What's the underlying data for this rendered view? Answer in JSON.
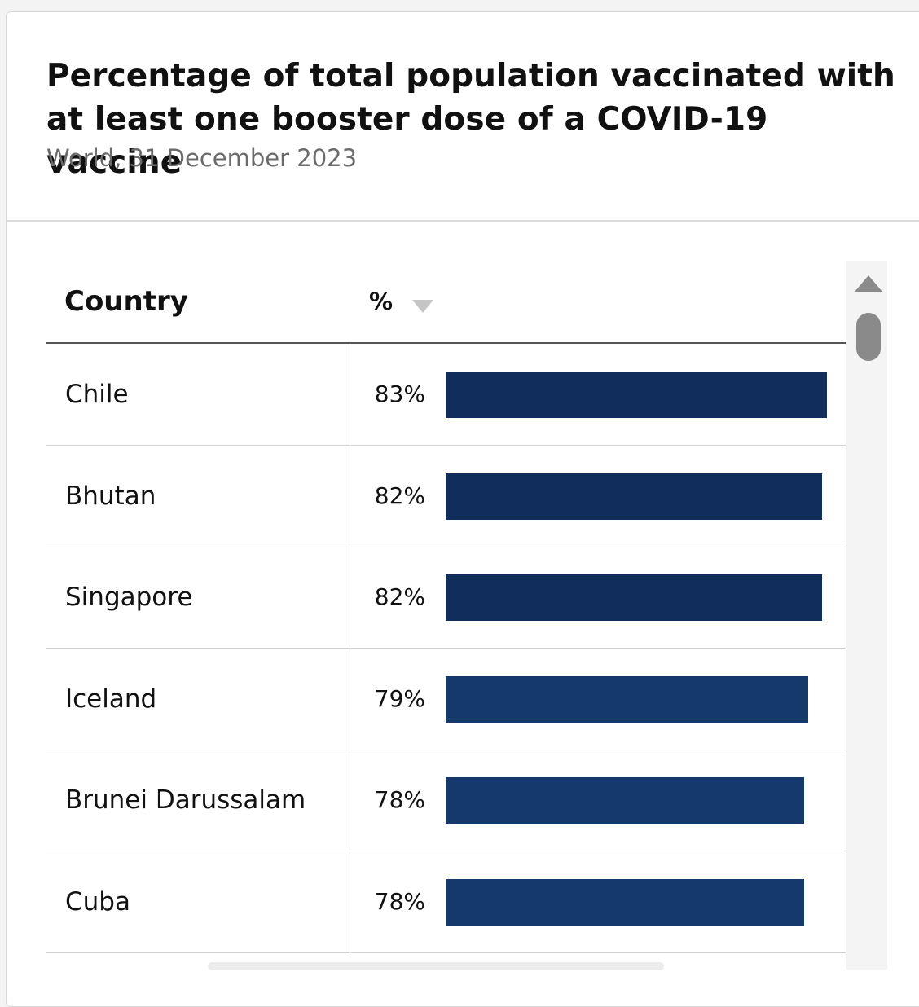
{
  "title": "Percentage of total population vaccinated with at least one booster dose of a COVID-19 vaccine",
  "subtitle": "World, 31 December 2023",
  "table": {
    "col_country": "Country",
    "col_value": "%"
  },
  "colors": {
    "bar_dark": "#102d5b",
    "bar_mid": "#133a6a",
    "header_rule": "#555555"
  },
  "chart_data": {
    "type": "bar",
    "orientation": "horizontal",
    "title": "Percentage of total population vaccinated with at least one booster dose of a COVID-19 vaccine",
    "subtitle": "World, 31 December 2023",
    "categories": [
      "Chile",
      "Bhutan",
      "Singapore",
      "Iceland",
      "Brunei Darussalam",
      "Cuba"
    ],
    "values": [
      83,
      82,
      82,
      79,
      78,
      78
    ],
    "value_labels": [
      "83%",
      "82%",
      "82%",
      "79%",
      "78%",
      "78%"
    ],
    "xlim": [
      0,
      83
    ],
    "sorted": "descending",
    "grid": false
  }
}
